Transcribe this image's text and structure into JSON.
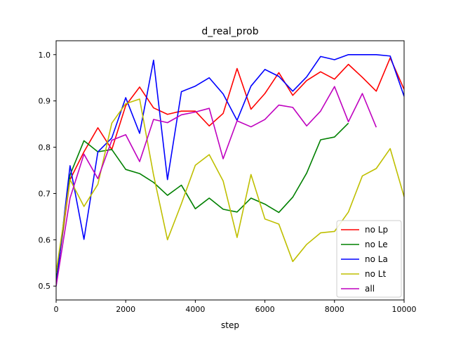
{
  "chart_data": {
    "type": "line",
    "title": "d_real_prob",
    "xlabel": "step",
    "ylabel": "",
    "xlim": [
      0,
      10000
    ],
    "ylim": [
      0.47,
      1.03
    ],
    "x_ticks": [
      0,
      2000,
      4000,
      6000,
      8000,
      10000
    ],
    "x_tick_labels": [
      "0",
      "2000",
      "4000",
      "6000",
      "8000",
      "10000"
    ],
    "y_ticks": [
      0.5,
      0.6,
      0.7,
      0.8,
      0.9,
      1.0
    ],
    "y_tick_labels": [
      "0.5",
      "0.6",
      "0.7",
      "0.8",
      "0.9",
      "1.0"
    ],
    "grid": false,
    "legend_position": "lower-right",
    "series": [
      {
        "name": "no Lp",
        "color": "#ff0000",
        "x": [
          0,
          400,
          800,
          1200,
          1600,
          2000,
          2400,
          2800,
          3200,
          3600,
          4000,
          4400,
          4800,
          5200,
          5600,
          6000,
          6400,
          6800,
          7200,
          7600,
          8000,
          8400,
          8800,
          9200,
          9600,
          10000
        ],
        "y": [
          0.51,
          0.73,
          0.79,
          0.842,
          0.795,
          0.89,
          0.93,
          0.885,
          0.871,
          0.878,
          0.878,
          0.846,
          0.873,
          0.97,
          0.882,
          0.916,
          0.961,
          0.912,
          0.944,
          0.963,
          0.947,
          0.979,
          0.951,
          0.921,
          0.993,
          0.925
        ]
      },
      {
        "name": "no Le",
        "color": "#008000",
        "x": [
          0,
          400,
          800,
          1200,
          1600,
          2000,
          2400,
          2800,
          3200,
          3600,
          4000,
          4400,
          4800,
          5200,
          5600,
          6000,
          6400,
          6800,
          7200,
          7600,
          8000,
          8400
        ],
        "y": [
          0.51,
          0.74,
          0.814,
          0.79,
          0.795,
          0.752,
          0.743,
          0.724,
          0.696,
          0.718,
          0.667,
          0.69,
          0.666,
          0.66,
          0.69,
          0.677,
          0.659,
          0.692,
          0.744,
          0.816,
          0.822,
          0.852
        ]
      },
      {
        "name": "no La",
        "color": "#0000ff",
        "x": [
          0,
          400,
          800,
          1200,
          1600,
          2000,
          2400,
          2800,
          3200,
          3600,
          4000,
          4400,
          4800,
          5200,
          5600,
          6000,
          6400,
          6800,
          7200,
          7600,
          8000,
          8400,
          8800,
          9200,
          9600,
          10000
        ],
        "y": [
          0.5,
          0.76,
          0.601,
          0.79,
          0.82,
          0.907,
          0.83,
          0.988,
          0.73,
          0.92,
          0.932,
          0.95,
          0.915,
          0.858,
          0.932,
          0.968,
          0.953,
          0.921,
          0.952,
          0.996,
          0.989,
          1.0,
          1.0,
          1.0,
          0.997,
          0.91
        ]
      },
      {
        "name": "no Lt",
        "color": "#bfbf00",
        "x": [
          0,
          400,
          800,
          1200,
          1600,
          2000,
          2400,
          2800,
          3200,
          3600,
          4000,
          4400,
          4800,
          5200,
          5600,
          6000,
          6400,
          6800,
          7200,
          7600,
          8000,
          8400,
          8800,
          9200,
          9600,
          10000
        ],
        "y": [
          0.53,
          0.73,
          0.672,
          0.72,
          0.852,
          0.894,
          0.904,
          0.74,
          0.6,
          0.678,
          0.761,
          0.784,
          0.727,
          0.605,
          0.741,
          0.645,
          0.634,
          0.553,
          0.59,
          0.615,
          0.618,
          0.66,
          0.738,
          0.754,
          0.797,
          0.693
        ]
      },
      {
        "name": "all",
        "color": "#bf00bf",
        "x": [
          0,
          400,
          800,
          1200,
          1600,
          2000,
          2400,
          2800,
          3200,
          3600,
          4000,
          4400,
          4800,
          5200,
          5600,
          6000,
          6400,
          6800,
          7200,
          7600,
          8000,
          8400,
          8800,
          9200
        ],
        "y": [
          0.5,
          0.69,
          0.785,
          0.732,
          0.815,
          0.827,
          0.769,
          0.86,
          0.853,
          0.87,
          0.876,
          0.884,
          0.775,
          0.857,
          0.844,
          0.86,
          0.891,
          0.886,
          0.846,
          0.878,
          0.931,
          0.855,
          0.916,
          0.843
        ]
      }
    ]
  }
}
